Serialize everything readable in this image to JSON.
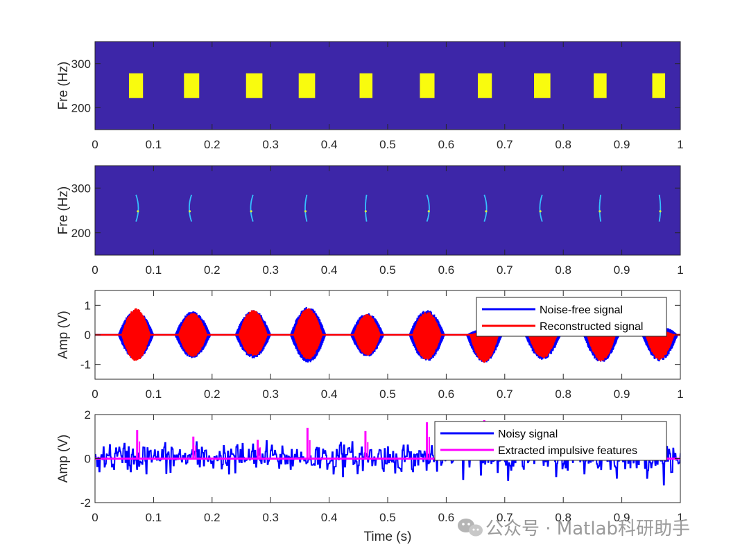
{
  "chart_data": [
    {
      "type": "heatmap",
      "title": "",
      "xlabel": "",
      "ylabel": "Fre (Hz)",
      "xlim": [
        0,
        1
      ],
      "ylim": [
        150,
        350
      ],
      "xticks": [
        "0",
        "0.1",
        "0.2",
        "0.3",
        "0.4",
        "0.5",
        "0.6",
        "0.7",
        "0.8",
        "0.9",
        "1"
      ],
      "yticks": [
        "200",
        "300"
      ],
      "background_color": "#3d26a8",
      "feature_color": "#f9fb0e",
      "blocks": [
        {
          "t0": 0.058,
          "t1": 0.082,
          "f0": 222,
          "f1": 278
        },
        {
          "t0": 0.152,
          "t1": 0.178,
          "f0": 222,
          "f1": 278
        },
        {
          "t0": 0.258,
          "t1": 0.286,
          "f0": 222,
          "f1": 278
        },
        {
          "t0": 0.348,
          "t1": 0.376,
          "f0": 222,
          "f1": 278
        },
        {
          "t0": 0.452,
          "t1": 0.474,
          "f0": 222,
          "f1": 278
        },
        {
          "t0": 0.555,
          "t1": 0.58,
          "f0": 222,
          "f1": 278
        },
        {
          "t0": 0.654,
          "t1": 0.678,
          "f0": 222,
          "f1": 278
        },
        {
          "t0": 0.75,
          "t1": 0.778,
          "f0": 222,
          "f1": 278
        },
        {
          "t0": 0.852,
          "t1": 0.874,
          "f0": 222,
          "f1": 278
        },
        {
          "t0": 0.952,
          "t1": 0.974,
          "f0": 222,
          "f1": 278
        }
      ]
    },
    {
      "type": "heatmap",
      "title": "",
      "xlabel": "",
      "ylabel": "Fre (Hz)",
      "xlim": [
        0,
        1
      ],
      "ylim": [
        150,
        350
      ],
      "xticks": [
        "0",
        "0.1",
        "0.2",
        "0.3",
        "0.4",
        "0.5",
        "0.6",
        "0.7",
        "0.8",
        "0.9",
        "1"
      ],
      "yticks": [
        "200",
        "300"
      ],
      "background_color": "#3d26a8",
      "ridge_color": "#35c0ff",
      "ridges": [
        {
          "center": 0.07,
          "dir": 1,
          "width": 0.004
        },
        {
          "center": 0.165,
          "dir": -1,
          "width": 0.004
        },
        {
          "center": 0.27,
          "dir": -1,
          "width": 0.004
        },
        {
          "center": 0.362,
          "dir": -1,
          "width": 0.003
        },
        {
          "center": 0.464,
          "dir": -1,
          "width": 0.002
        },
        {
          "center": 0.567,
          "dir": 1,
          "width": 0.004
        },
        {
          "center": 0.665,
          "dir": 1,
          "width": 0.004
        },
        {
          "center": 0.764,
          "dir": -1,
          "width": 0.004
        },
        {
          "center": 0.864,
          "dir": -1,
          "width": 0.002
        },
        {
          "center": 0.964,
          "dir": 1,
          "width": 0.002
        }
      ]
    },
    {
      "type": "line",
      "title": "",
      "xlabel": "",
      "ylabel": "Amp (V)",
      "xlim": [
        0,
        1
      ],
      "ylim": [
        -1.5,
        1.5
      ],
      "xticks": [
        "0",
        "0.1",
        "0.2",
        "0.3",
        "0.4",
        "0.5",
        "0.6",
        "0.7",
        "0.8",
        "0.9",
        "1"
      ],
      "yticks": [
        "-1",
        "0",
        "1"
      ],
      "legend_position": "top-right",
      "series": [
        {
          "name": "Noise-free signal",
          "color": "#0000ff",
          "kind": "bursts",
          "bursts": [
            {
              "center": 0.07,
              "amp_pos": 0.85,
              "amp_neg": 0.85,
              "halfwidth": 0.03
            },
            {
              "center": 0.167,
              "amp_pos": 0.8,
              "amp_neg": 0.8,
              "halfwidth": 0.03
            },
            {
              "center": 0.27,
              "amp_pos": 0.85,
              "amp_neg": 0.8,
              "halfwidth": 0.03
            },
            {
              "center": 0.364,
              "amp_pos": 0.95,
              "amp_neg": 0.95,
              "halfwidth": 0.03
            },
            {
              "center": 0.465,
              "amp_pos": 0.75,
              "amp_neg": 0.75,
              "halfwidth": 0.028
            },
            {
              "center": 0.567,
              "amp_pos": 0.85,
              "amp_neg": 0.9,
              "halfwidth": 0.03
            },
            {
              "center": 0.665,
              "amp_pos": 0.2,
              "amp_neg": 0.95,
              "halfwidth": 0.03
            },
            {
              "center": 0.765,
              "amp_pos": 0.2,
              "amp_neg": 0.85,
              "halfwidth": 0.03
            },
            {
              "center": 0.865,
              "amp_pos": 0.2,
              "amp_neg": 0.95,
              "halfwidth": 0.03
            },
            {
              "center": 0.965,
              "amp_pos": 0.3,
              "amp_neg": 0.9,
              "halfwidth": 0.03
            }
          ]
        },
        {
          "name": "Reconstructed signal",
          "color": "#ff0000",
          "kind": "bursts",
          "bursts": [
            {
              "center": 0.07,
              "amp_pos": 0.9,
              "amp_neg": 0.9,
              "halfwidth": 0.024
            },
            {
              "center": 0.167,
              "amp_pos": 0.75,
              "amp_neg": 0.75,
              "halfwidth": 0.024
            },
            {
              "center": 0.27,
              "amp_pos": 0.85,
              "amp_neg": 0.75,
              "halfwidth": 0.024
            },
            {
              "center": 0.364,
              "amp_pos": 0.9,
              "amp_neg": 0.85,
              "halfwidth": 0.024
            },
            {
              "center": 0.465,
              "amp_pos": 0.7,
              "amp_neg": 0.7,
              "halfwidth": 0.022
            },
            {
              "center": 0.567,
              "amp_pos": 0.8,
              "amp_neg": 0.85,
              "halfwidth": 0.024
            },
            {
              "center": 0.665,
              "amp_pos": 0.1,
              "amp_neg": 0.95,
              "halfwidth": 0.024
            },
            {
              "center": 0.765,
              "amp_pos": 0.1,
              "amp_neg": 0.8,
              "halfwidth": 0.024
            },
            {
              "center": 0.865,
              "amp_pos": 0.1,
              "amp_neg": 0.9,
              "halfwidth": 0.024
            },
            {
              "center": 0.965,
              "amp_pos": 0.15,
              "amp_neg": 0.85,
              "halfwidth": 0.024
            }
          ]
        }
      ]
    },
    {
      "type": "line",
      "title": "",
      "xlabel": "Time (s)",
      "ylabel": "Amp (V)",
      "xlim": [
        0,
        1
      ],
      "ylim": [
        -2,
        2
      ],
      "xticks": [
        "0",
        "0.1",
        "0.2",
        "0.3",
        "0.4",
        "0.5",
        "0.6",
        "0.7",
        "0.8",
        "0.9",
        "1"
      ],
      "yticks": [
        "-2",
        "0",
        "2"
      ],
      "legend_position": "top-right",
      "series": [
        {
          "name": "Noisy signal",
          "color": "#0000ff",
          "kind": "noise",
          "sigma": 0.55,
          "min": -1.8,
          "max": 1.95
        },
        {
          "name": "Extracted impulsive features",
          "color": "#ff00ff",
          "kind": "impulses",
          "impulses": [
            {
              "x": 0.072,
              "y": 1.3
            },
            {
              "x": 0.168,
              "y": 1.0
            },
            {
              "x": 0.278,
              "y": 0.85
            },
            {
              "x": 0.363,
              "y": 1.4
            },
            {
              "x": 0.462,
              "y": 1.25
            },
            {
              "x": 0.567,
              "y": 1.65
            },
            {
              "x": 0.665,
              "y": 1.75
            }
          ]
        }
      ]
    }
  ],
  "watermark": {
    "text": "公众号 · Matlab科研助手",
    "icon": "wechat-icon"
  }
}
